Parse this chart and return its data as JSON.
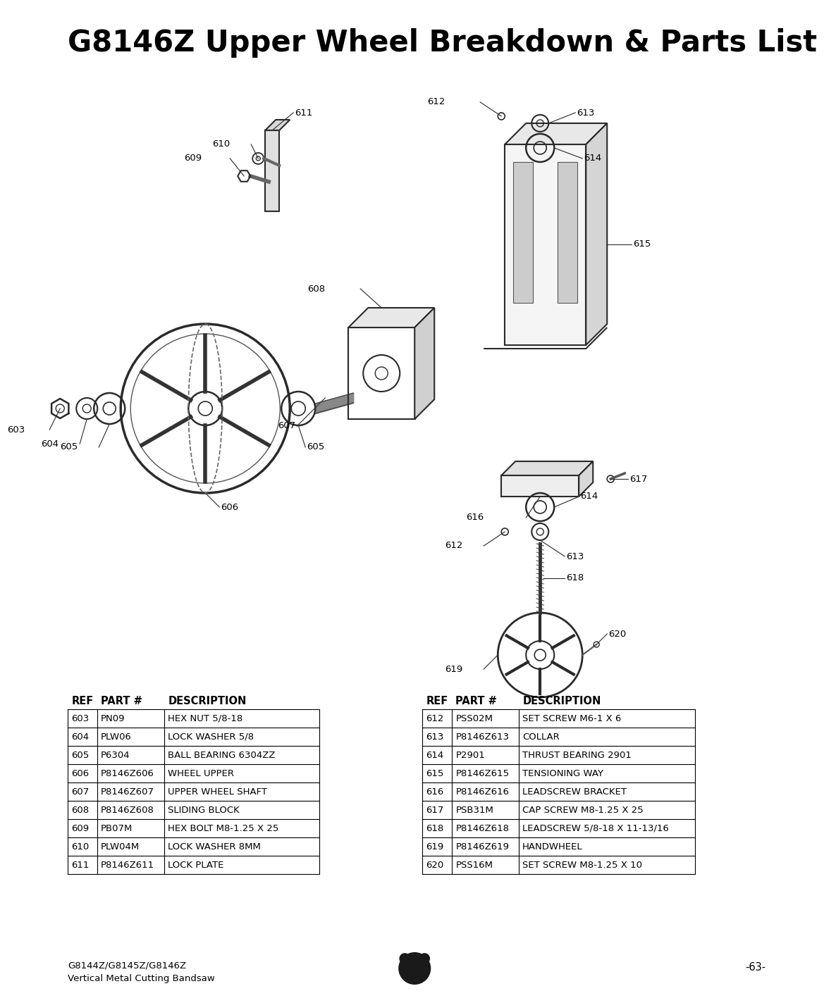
{
  "title": "G8146Z Upper Wheel Breakdown & Parts List",
  "bg_color": "#ffffff",
  "title_fontsize": 30,
  "footer_left_line1": "G8144Z/G8145Z/G8146Z",
  "footer_left_line2": "Vertical Metal Cutting Bandsaw",
  "footer_right": "-63-",
  "parts_table_left": [
    [
      "603",
      "PN09",
      "HEX NUT 5/8-18"
    ],
    [
      "604",
      "PLW06",
      "LOCK WASHER 5/8"
    ],
    [
      "605",
      "P6304",
      "BALL BEARING 6304ZZ"
    ],
    [
      "606",
      "P8146Z606",
      "WHEEL UPPER"
    ],
    [
      "607",
      "P8146Z607",
      "UPPER WHEEL SHAFT"
    ],
    [
      "608",
      "P8146Z608",
      "SLIDING BLOCK"
    ],
    [
      "609",
      "PB07M",
      "HEX BOLT M8-1.25 X 25"
    ],
    [
      "610",
      "PLW04M",
      "LOCK WASHER 8MM"
    ],
    [
      "611",
      "P8146Z611",
      "LOCK PLATE"
    ]
  ],
  "parts_table_right": [
    [
      "612",
      "PSS02M",
      "SET SCREW M6-1 X 6"
    ],
    [
      "613",
      "P8146Z613",
      "COLLAR"
    ],
    [
      "614",
      "P2901",
      "THRUST BEARING 2901"
    ],
    [
      "615",
      "P8146Z615",
      "TENSIONING WAY"
    ],
    [
      "616",
      "P8146Z616",
      "LEADSCREW BRACKET"
    ],
    [
      "617",
      "PSB31M",
      "CAP SCREW M8-1.25 X 25"
    ],
    [
      "618",
      "P8146Z618",
      "LEADSCREW 5/8-18 X 11-13/16"
    ],
    [
      "619",
      "P8146Z619",
      "HANDWHEEL"
    ],
    [
      "620",
      "PSS16M",
      "SET SCREW M8-1.25 X 10"
    ]
  ],
  "col_headers": [
    "REF",
    "PART #",
    "DESCRIPTION"
  ]
}
